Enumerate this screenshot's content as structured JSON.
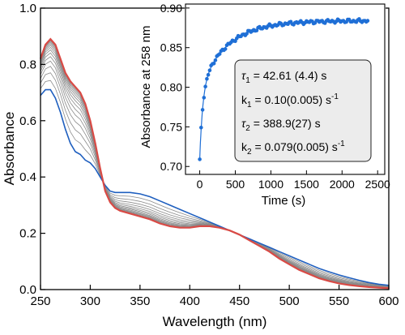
{
  "chart_data": [
    {
      "type": "line",
      "xlabel": "Wavelength (nm)",
      "ylabel": "Absorbance",
      "xlim": [
        250,
        600
      ],
      "ylim": [
        0.0,
        1.0
      ],
      "xticks": [
        250,
        300,
        350,
        400,
        450,
        500,
        550,
        600
      ],
      "xtick_labels": [
        "250",
        "300",
        "350",
        "400",
        "450",
        "500",
        "550",
        "600"
      ],
      "yticks": [
        0.0,
        0.2,
        0.4,
        0.6,
        0.8,
        1.0
      ],
      "ytick_labels": [
        "0.0",
        "0.2",
        "0.4",
        "0.6",
        "0.8",
        "1.0"
      ],
      "grid": false,
      "colors": {
        "initial": "#1f5fbf",
        "final": "#d94a45",
        "intermediate": "#8a8a8a"
      },
      "x": [
        250,
        255,
        260,
        265,
        270,
        275,
        280,
        285,
        290,
        295,
        300,
        305,
        310,
        315,
        320,
        325,
        330,
        340,
        350,
        360,
        370,
        380,
        390,
        400,
        410,
        420,
        430,
        440,
        450,
        460,
        470,
        480,
        490,
        500,
        510,
        520,
        530,
        540,
        550,
        560,
        570,
        580,
        590,
        600
      ],
      "series": [
        {
          "role": "initial",
          "values": [
            0.69,
            0.71,
            0.71,
            0.68,
            0.63,
            0.57,
            0.52,
            0.49,
            0.48,
            0.46,
            0.45,
            0.43,
            0.4,
            0.37,
            0.35,
            0.345,
            0.345,
            0.345,
            0.34,
            0.33,
            0.315,
            0.3,
            0.285,
            0.27,
            0.255,
            0.24,
            0.225,
            0.21,
            0.195,
            0.18,
            0.165,
            0.15,
            0.135,
            0.12,
            0.105,
            0.09,
            0.075,
            0.063,
            0.052,
            0.042,
            0.033,
            0.025,
            0.019,
            0.015
          ]
        },
        {
          "role": "final",
          "values": [
            0.82,
            0.87,
            0.89,
            0.87,
            0.82,
            0.77,
            0.74,
            0.72,
            0.7,
            0.66,
            0.6,
            0.52,
            0.43,
            0.35,
            0.31,
            0.29,
            0.28,
            0.27,
            0.26,
            0.25,
            0.235,
            0.225,
            0.22,
            0.22,
            0.225,
            0.225,
            0.22,
            0.21,
            0.195,
            0.175,
            0.155,
            0.135,
            0.11,
            0.09,
            0.07,
            0.055,
            0.04,
            0.03,
            0.022,
            0.016,
            0.012,
            0.009,
            0.007,
            0.005
          ]
        }
      ],
      "intermediate_traces": 14
    },
    {
      "type": "scatter",
      "xlabel": "Time (s)",
      "ylabel": "Absorbance at 258 nm",
      "xlim": [
        -200,
        2600
      ],
      "ylim": [
        0.69,
        0.905
      ],
      "xticks": [
        0,
        500,
        1000,
        1500,
        2000,
        2500
      ],
      "xtick_labels": [
        "0",
        "500",
        "1000",
        "1500",
        "2000",
        "2500"
      ],
      "yticks": [
        0.7,
        0.75,
        0.8,
        0.85,
        0.9
      ],
      "ytick_labels": [
        "0.70",
        "0.75",
        "0.80",
        "0.85",
        "0.90"
      ],
      "grid": false,
      "point_color": "#1f6fd6",
      "fit_color": "#1f6fd6",
      "fit_model": {
        "y0": 0.709,
        "a1": 0.09,
        "tau1": 42.61,
        "a2": 0.085,
        "tau2": 388.9
      },
      "point_spacing": 20,
      "point_max_time": 2360,
      "parameters": [
        {
          "sym": "τ",
          "sub": "1",
          "value": " = 42.61 (4.4) s"
        },
        {
          "sym": "k",
          "sub": "1",
          "value": " = 0.10(0.005) s",
          "sup": "-1"
        },
        {
          "sym": "τ",
          "sub": "2",
          "value": " = 388.9(27) s"
        },
        {
          "sym": "k",
          "sub": "2",
          "value": " = 0.079(0.005) s",
          "sup": "-1"
        }
      ]
    }
  ]
}
